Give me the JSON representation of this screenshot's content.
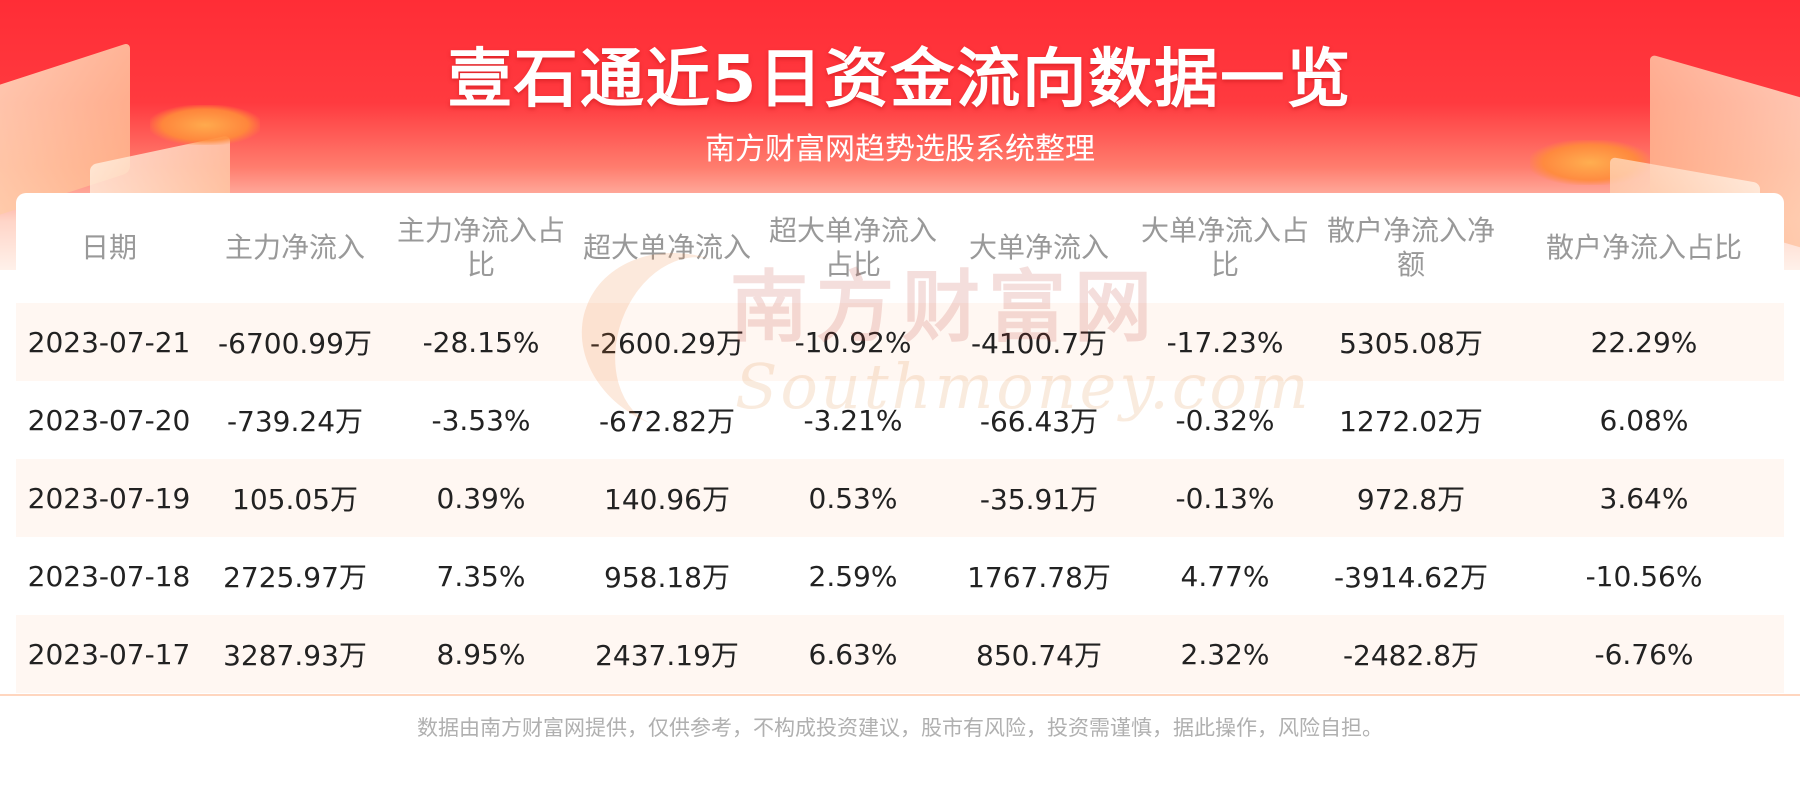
{
  "header": {
    "title": "壹石通近5日资金流向数据一览",
    "subtitle": "南方财富网趋势选股系统整理"
  },
  "watermark": {
    "cn": "南方财富网",
    "en": "Southmoney.com"
  },
  "table": {
    "columns": [
      "日期",
      "主力净流入",
      "主力净流入占比",
      "超大单净流入",
      "超大单净流入占比",
      "大单净流入",
      "大单净流入占比",
      "散户净流入净额",
      "散户净流入占比"
    ],
    "rows": [
      [
        "2023-07-21",
        "-6700.99万",
        "-28.15%",
        "-2600.29万",
        "-10.92%",
        "-4100.7万",
        "-17.23%",
        "5305.08万",
        "22.29%"
      ],
      [
        "2023-07-20",
        "-739.24万",
        "-3.53%",
        "-672.82万",
        "-3.21%",
        "-66.43万",
        "-0.32%",
        "1272.02万",
        "6.08%"
      ],
      [
        "2023-07-19",
        "105.05万",
        "0.39%",
        "140.96万",
        "0.53%",
        "-35.91万",
        "-0.13%",
        "972.8万",
        "3.64%"
      ],
      [
        "2023-07-18",
        "2725.97万",
        "7.35%",
        "958.18万",
        "2.59%",
        "1767.78万",
        "4.77%",
        "-3914.62万",
        "-10.56%"
      ],
      [
        "2023-07-17",
        "3287.93万",
        "8.95%",
        "2437.19万",
        "6.63%",
        "850.74万",
        "2.32%",
        "-2482.8万",
        "-6.76%"
      ]
    ]
  },
  "footer": {
    "disclaimer": "数据由南方财富网提供，仅供参考，不构成投资建议，股市有风险，投资需谨慎，据此操作，风险自担。"
  },
  "colors": {
    "banner_red": "#ff2d36",
    "row_stripe": "#fff6f0",
    "header_text": "#999999",
    "cell_text": "#222222"
  }
}
